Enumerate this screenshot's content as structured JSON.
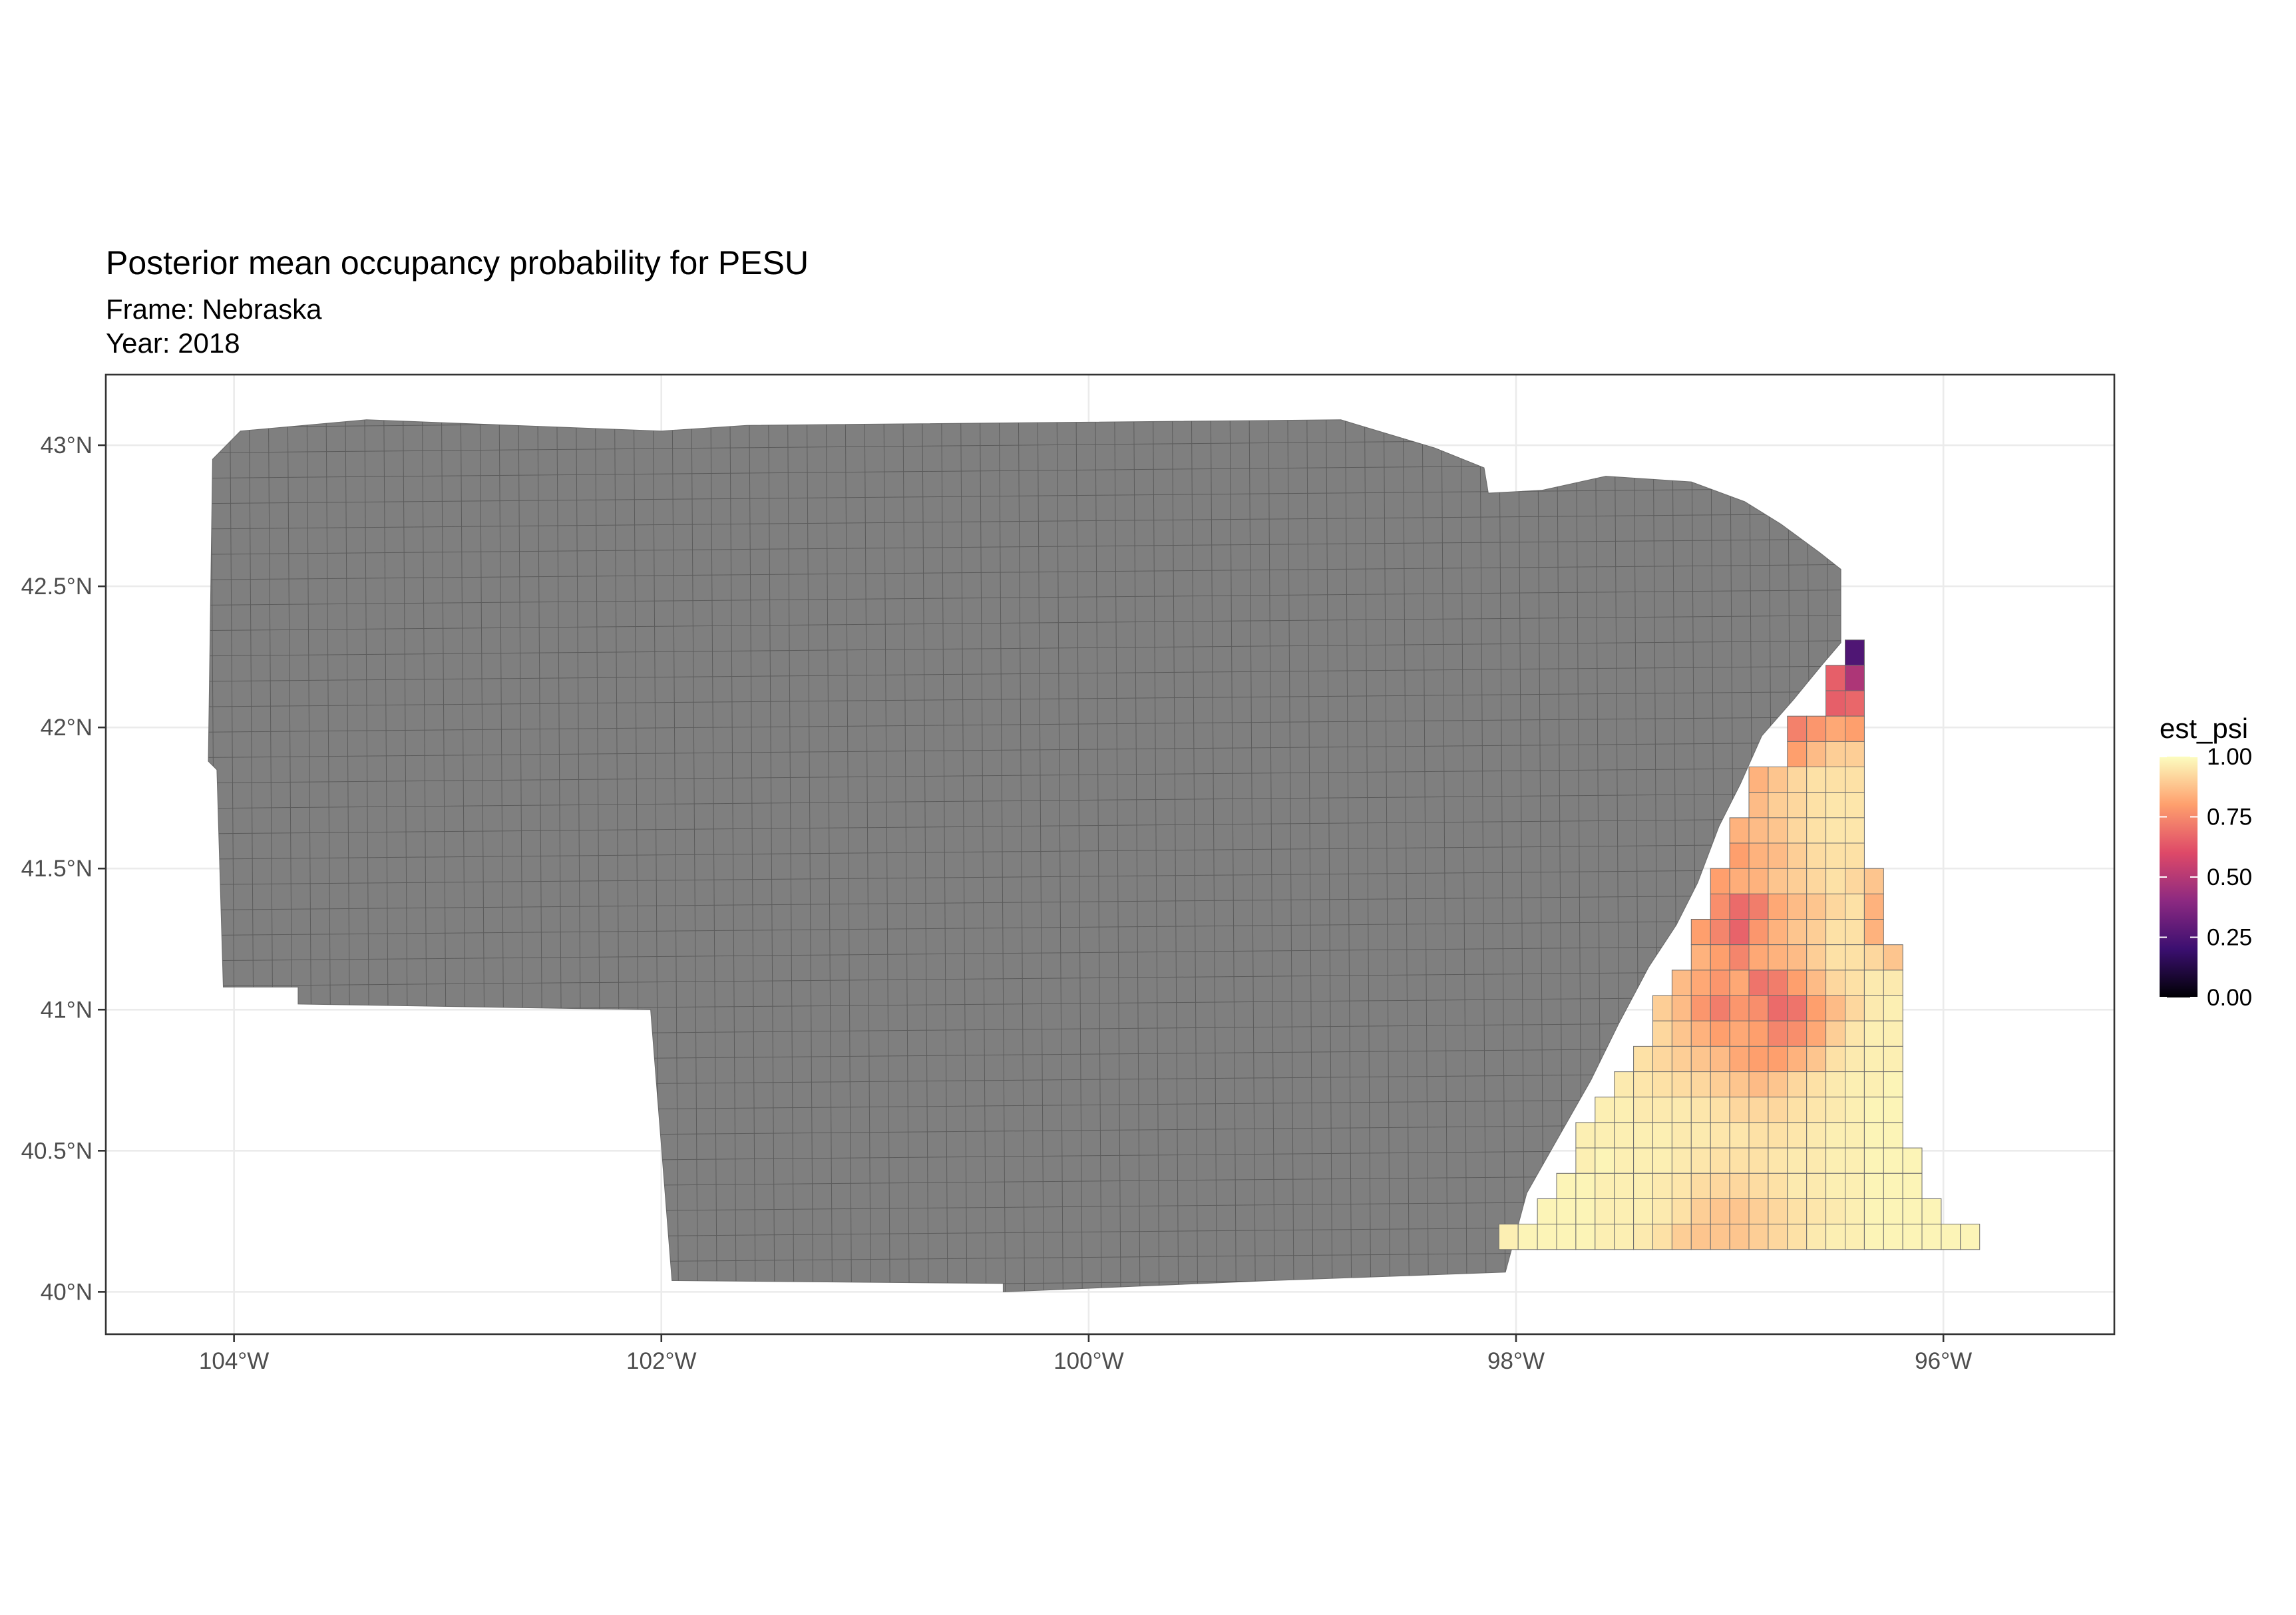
{
  "chart_data": {
    "type": "heatmap",
    "title": "Posterior mean occupancy probability for PESU",
    "subtitle_lines": [
      "Frame: Nebraska",
      "Year: 2018"
    ],
    "x_ticks": [
      {
        "value": -104,
        "label": "104°W"
      },
      {
        "value": -102,
        "label": "102°W"
      },
      {
        "value": -100,
        "label": "100°W"
      },
      {
        "value": -98,
        "label": "98°W"
      },
      {
        "value": -96,
        "label": "96°W"
      }
    ],
    "y_ticks": [
      {
        "value": 40,
        "label": "40°N"
      },
      {
        "value": 40.5,
        "label": "40.5°N"
      },
      {
        "value": 41,
        "label": "41°N"
      },
      {
        "value": 41.5,
        "label": "41.5°N"
      },
      {
        "value": 42,
        "label": "42°N"
      },
      {
        "value": 42.5,
        "label": "42.5°N"
      },
      {
        "value": 43,
        "label": "43°N"
      }
    ],
    "xlim": [
      -104.6,
      -95.2
    ],
    "ylim": [
      39.85,
      43.25
    ],
    "grid": true,
    "legend": {
      "title": "est_psi",
      "position": "right",
      "ticks": [
        "0.00",
        "0.25",
        "0.50",
        "0.75",
        "1.00"
      ],
      "tick_values": [
        0,
        0.25,
        0.5,
        0.75,
        1.0
      ],
      "colors": [
        "#000004",
        "#3b0f70",
        "#8c2981",
        "#de4968",
        "#fe9f6d",
        "#fcfdbf"
      ]
    },
    "no_data_color": "#7f7f7f",
    "no_data_region": [
      [
        -104.1,
        42.95
      ],
      [
        -103.97,
        43.05
      ],
      [
        -103.38,
        43.09
      ],
      [
        -102.0,
        43.05
      ],
      [
        -101.6,
        43.07
      ],
      [
        -98.82,
        43.09
      ],
      [
        -98.38,
        42.99
      ],
      [
        -98.15,
        42.92
      ],
      [
        -98.13,
        42.83
      ],
      [
        -97.88,
        42.84
      ],
      [
        -97.58,
        42.89
      ],
      [
        -97.18,
        42.87
      ],
      [
        -96.93,
        42.8
      ],
      [
        -96.76,
        42.72
      ],
      [
        -96.58,
        42.62
      ],
      [
        -96.48,
        42.56
      ],
      [
        -96.48,
        42.3
      ],
      [
        -96.57,
        42.22
      ],
      [
        -96.7,
        42.1
      ],
      [
        -96.85,
        41.97
      ],
      [
        -96.95,
        41.8
      ],
      [
        -97.05,
        41.65
      ],
      [
        -97.15,
        41.45
      ],
      [
        -97.25,
        41.3
      ],
      [
        -97.38,
        41.15
      ],
      [
        -97.52,
        40.95
      ],
      [
        -97.65,
        40.75
      ],
      [
        -97.8,
        40.55
      ],
      [
        -97.95,
        40.35
      ],
      [
        -98.05,
        40.07
      ],
      [
        -99.15,
        40.04
      ],
      [
        -100.4,
        40.0
      ],
      [
        -100.4,
        40.03
      ],
      [
        -101.95,
        40.04
      ],
      [
        -102.05,
        41.0
      ],
      [
        -103.7,
        41.02
      ],
      [
        -103.7,
        41.08
      ],
      [
        -104.05,
        41.08
      ],
      [
        -104.08,
        41.85
      ],
      [
        -104.12,
        41.88
      ]
    ],
    "cells": {
      "lat_top": 42.31,
      "cell_deg": 0.09,
      "lon_start": -98.08,
      "rows": [
        {
          "from": 18,
          "values": [
            0.25
          ]
        },
        {
          "from": 17,
          "values": [
            0.65,
            0.48
          ]
        },
        {
          "from": 17,
          "values": [
            0.65,
            0.67
          ]
        },
        {
          "from": 15,
          "values": [
            0.73,
            0.78,
            0.82,
            0.8
          ]
        },
        {
          "from": 15,
          "values": [
            0.8,
            0.86,
            0.9,
            0.9
          ]
        },
        {
          "from": 13,
          "values": [
            0.84,
            0.88,
            0.92,
            0.94,
            0.94,
            0.94
          ]
        },
        {
          "from": 13,
          "values": [
            0.86,
            0.9,
            0.92,
            0.94,
            0.95,
            0.95
          ]
        },
        {
          "from": 12,
          "values": [
            0.84,
            0.86,
            0.88,
            0.92,
            0.94,
            0.95,
            0.95
          ]
        },
        {
          "from": 12,
          "values": [
            0.8,
            0.84,
            0.86,
            0.9,
            0.93,
            0.94,
            0.94
          ]
        },
        {
          "from": 11,
          "values": [
            0.8,
            0.83,
            0.84,
            0.88,
            0.9,
            0.92,
            0.94,
            0.92,
            0.88
          ]
        },
        {
          "from": 11,
          "values": [
            0.76,
            0.68,
            0.72,
            0.82,
            0.86,
            0.88,
            0.92,
            0.94,
            0.84
          ]
        },
        {
          "from": 10,
          "values": [
            0.8,
            0.74,
            0.66,
            0.78,
            0.84,
            0.88,
            0.9,
            0.94,
            0.94,
            0.84
          ]
        },
        {
          "from": 10,
          "values": [
            0.84,
            0.8,
            0.74,
            0.82,
            0.84,
            0.86,
            0.9,
            0.94,
            0.94,
            0.92,
            0.88
          ]
        },
        {
          "from": 9,
          "values": [
            0.86,
            0.82,
            0.78,
            0.82,
            0.7,
            0.72,
            0.8,
            0.86,
            0.92,
            0.94,
            0.96,
            0.96
          ]
        },
        {
          "from": 8,
          "values": [
            0.9,
            0.86,
            0.78,
            0.72,
            0.78,
            0.76,
            0.68,
            0.7,
            0.8,
            0.86,
            0.92,
            0.96,
            0.97
          ]
        },
        {
          "from": 8,
          "values": [
            0.92,
            0.88,
            0.84,
            0.8,
            0.82,
            0.8,
            0.74,
            0.76,
            0.82,
            0.9,
            0.95,
            0.97,
            0.97
          ]
        },
        {
          "from": 7,
          "values": [
            0.94,
            0.92,
            0.9,
            0.88,
            0.86,
            0.82,
            0.8,
            0.8,
            0.84,
            0.88,
            0.94,
            0.96,
            0.97,
            0.97
          ]
        },
        {
          "from": 6,
          "values": [
            0.96,
            0.95,
            0.94,
            0.93,
            0.92,
            0.9,
            0.88,
            0.86,
            0.88,
            0.92,
            0.94,
            0.96,
            0.97,
            0.97,
            0.98
          ]
        },
        {
          "from": 5,
          "values": [
            0.97,
            0.97,
            0.96,
            0.96,
            0.96,
            0.95,
            0.94,
            0.92,
            0.92,
            0.92,
            0.94,
            0.95,
            0.96,
            0.97,
            0.98,
            0.98
          ]
        },
        {
          "from": 4,
          "values": [
            0.97,
            0.97,
            0.97,
            0.97,
            0.97,
            0.96,
            0.96,
            0.95,
            0.95,
            0.94,
            0.94,
            0.95,
            0.96,
            0.97,
            0.97,
            0.98,
            0.98
          ]
        },
        {
          "from": 4,
          "values": [
            0.97,
            0.98,
            0.97,
            0.97,
            0.97,
            0.96,
            0.95,
            0.94,
            0.94,
            0.94,
            0.95,
            0.96,
            0.96,
            0.97,
            0.97,
            0.98,
            0.98,
            0.98
          ]
        },
        {
          "from": 3,
          "values": [
            0.98,
            0.98,
            0.97,
            0.97,
            0.97,
            0.96,
            0.95,
            0.93,
            0.92,
            0.92,
            0.93,
            0.94,
            0.96,
            0.96,
            0.97,
            0.97,
            0.98,
            0.98,
            0.98
          ]
        },
        {
          "from": 2,
          "values": [
            0.98,
            0.98,
            0.98,
            0.97,
            0.97,
            0.97,
            0.96,
            0.94,
            0.9,
            0.88,
            0.88,
            0.9,
            0.92,
            0.94,
            0.95,
            0.96,
            0.97,
            0.98,
            0.98,
            0.98,
            0.98
          ]
        },
        {
          "from": 0,
          "values": [
            0.97,
            0.98,
            0.98,
            0.98,
            0.98,
            0.97,
            0.97,
            0.96,
            0.94,
            0.9,
            0.88,
            0.88,
            0.88,
            0.9,
            0.92,
            0.94,
            0.96,
            0.97,
            0.97,
            0.98,
            0.98,
            0.98,
            0.98,
            0.98,
            0.98
          ]
        }
      ]
    }
  }
}
